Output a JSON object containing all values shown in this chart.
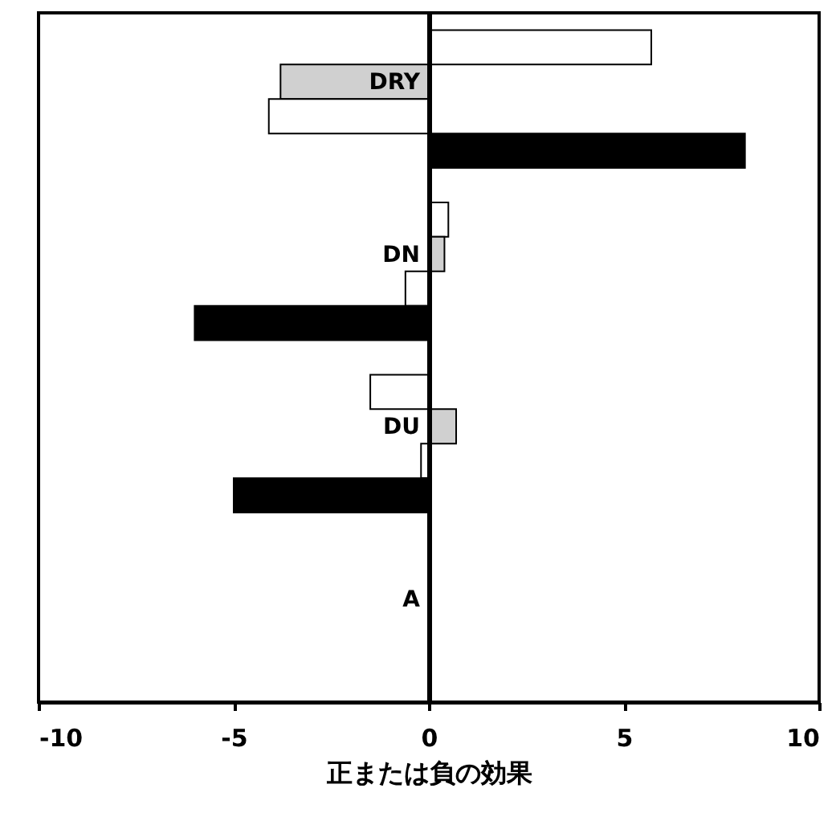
{
  "chart_data": {
    "type": "bar",
    "orientation": "horizontal",
    "xlabel": "正または負の効果",
    "categories": [
      "DRY",
      "DN",
      "DU",
      "A"
    ],
    "xlim": [
      -10,
      10
    ],
    "xticks": [
      -10,
      -5,
      0,
      5,
      10
    ],
    "grid": false,
    "series": [
      {
        "color": "#ffffff",
        "values": [
          5.7,
          0.5,
          -1.5,
          null
        ]
      },
      {
        "color": "#d0d0d0",
        "values": [
          -3.8,
          0.4,
          0.7,
          null
        ]
      },
      {
        "color": "#ffffff",
        "values": [
          -4.1,
          -0.6,
          -0.2,
          null
        ]
      },
      {
        "color": "#000000",
        "values": [
          8.1,
          -6.0,
          -5.0,
          null
        ]
      }
    ]
  }
}
